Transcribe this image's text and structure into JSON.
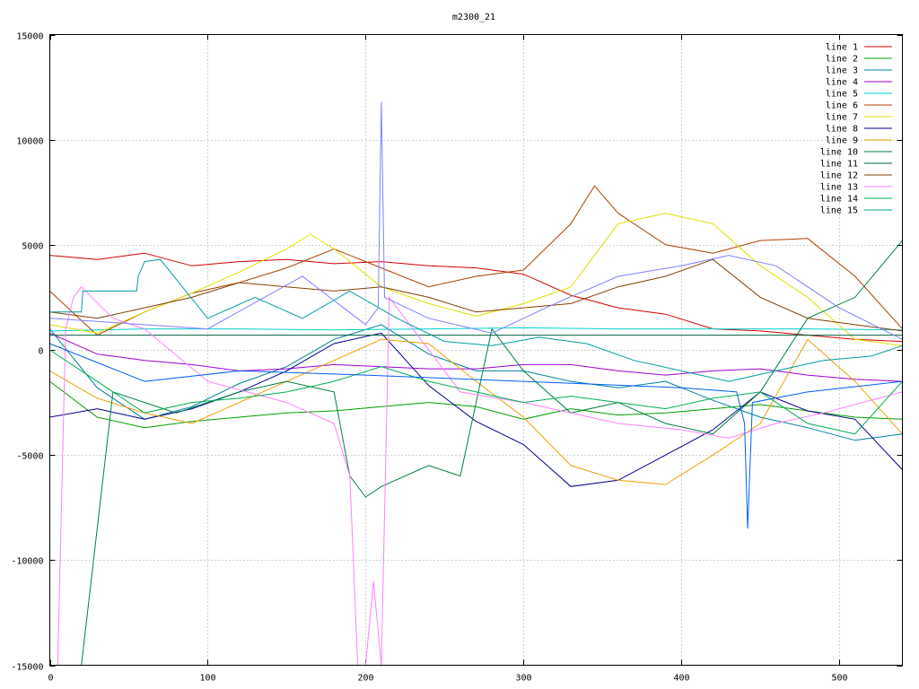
{
  "chart_data": {
    "type": "line",
    "title": "m2300_21",
    "xlabel": "",
    "ylabel": "",
    "xlim": [
      0,
      540
    ],
    "ylim": [
      -15000,
      15000
    ],
    "x_ticks": [
      0,
      100,
      200,
      300,
      400,
      500
    ],
    "y_ticks": [
      -15000,
      -10000,
      -5000,
      0,
      5000,
      10000,
      15000
    ],
    "grid": true,
    "legend_position": "top-right",
    "series": [
      {
        "name": "line 1",
        "color": "#d40000",
        "x": [
          0,
          30,
          60,
          90,
          120,
          150,
          180,
          210,
          240,
          270,
          300,
          330,
          360,
          390,
          420,
          450,
          480,
          510,
          540
        ],
        "values": [
          4500,
          4300,
          4600,
          4000,
          4200,
          4300,
          4100,
          4200,
          4000,
          3900,
          3600,
          2600,
          2000,
          1700,
          1000,
          900,
          700,
          500,
          400
        ]
      },
      {
        "name": "line 2",
        "color": "#00a000",
        "x": [
          0,
          30,
          60,
          90,
          120,
          150,
          180,
          210,
          240,
          270,
          300,
          330,
          360,
          390,
          420,
          450,
          480,
          510,
          540
        ],
        "values": [
          -1500,
          -3200,
          -3700,
          -3400,
          -3200,
          -3000,
          -2900,
          -2700,
          -2500,
          -2700,
          -3300,
          -2800,
          -3100,
          -3000,
          -2800,
          -2600,
          -2900,
          -3200,
          -3300
        ]
      },
      {
        "name": "line 3",
        "color": "#0080a0",
        "x": [
          0,
          30,
          60,
          90,
          120,
          150,
          180,
          210,
          240,
          270,
          300,
          330,
          360,
          390,
          420,
          450,
          480,
          510,
          540
        ],
        "values": [
          1000,
          -1800,
          -3300,
          -2700,
          -1600,
          -800,
          500,
          1200,
          -200,
          -1000,
          -1000,
          -1500,
          -1800,
          -1500,
          -2400,
          -3200,
          -3700,
          -4300,
          -4000
        ]
      },
      {
        "name": "line 4",
        "color": "#a000d0",
        "x": [
          0,
          30,
          60,
          90,
          120,
          150,
          180,
          210,
          240,
          270,
          300,
          330,
          360,
          390,
          420,
          450,
          480,
          510,
          540
        ],
        "values": [
          800,
          -200,
          -500,
          -700,
          -1000,
          -900,
          -700,
          -800,
          -900,
          -900,
          -700,
          -700,
          -1000,
          -1200,
          -1000,
          -900,
          -1200,
          -1400,
          -1500
        ]
      },
      {
        "name": "line 5",
        "color": "#00d0d0",
        "x": [
          0,
          60,
          120,
          180,
          240,
          300,
          360,
          420,
          480,
          540
        ],
        "values": [
          900,
          1000,
          1000,
          950,
          1000,
          1050,
          1000,
          1000,
          1000,
          950
        ]
      },
      {
        "name": "line 6",
        "color": "#b04000",
        "x": [
          0,
          30,
          60,
          90,
          120,
          150,
          180,
          210,
          240,
          270,
          300,
          330,
          345,
          360,
          390,
          420,
          450,
          480,
          510,
          540
        ],
        "values": [
          2800,
          700,
          1800,
          2700,
          3200,
          3900,
          4800,
          3900,
          3000,
          3500,
          3800,
          6000,
          7800,
          6500,
          5000,
          4600,
          5200,
          5300,
          3500,
          1000
        ]
      },
      {
        "name": "line 7",
        "color": "#e0e000",
        "x": [
          0,
          30,
          60,
          90,
          120,
          150,
          165,
          180,
          210,
          240,
          270,
          300,
          330,
          360,
          390,
          420,
          450,
          480,
          510,
          540
        ],
        "values": [
          1200,
          800,
          1800,
          2700,
          3700,
          4800,
          5500,
          4800,
          3000,
          2200,
          1600,
          2200,
          3000,
          6000,
          6500,
          6000,
          4000,
          2500,
          500,
          200
        ]
      },
      {
        "name": "line 8",
        "color": "#000090",
        "x": [
          0,
          30,
          60,
          90,
          120,
          150,
          180,
          210,
          240,
          270,
          300,
          330,
          360,
          390,
          420,
          450,
          480,
          510,
          540
        ],
        "values": [
          -3200,
          -2800,
          -3300,
          -2800,
          -2000,
          -1000,
          300,
          800,
          -1700,
          -3400,
          -4500,
          -6500,
          -6200,
          -5000,
          -3800,
          -2000,
          -2900,
          -3300,
          -5700
        ]
      },
      {
        "name": "line 9",
        "color": "#f0a000",
        "x": [
          0,
          30,
          60,
          90,
          120,
          150,
          180,
          210,
          240,
          270,
          300,
          330,
          360,
          390,
          420,
          450,
          480,
          510,
          540
        ],
        "values": [
          -1000,
          -2300,
          -3000,
          -3500,
          -2500,
          -1500,
          -500,
          500,
          300,
          -1500,
          -3200,
          -5500,
          -6200,
          -6400,
          -5000,
          -3500,
          500,
          -1500,
          -4000
        ]
      },
      {
        "name": "line 10",
        "color": "#008040",
        "x": [
          0,
          20,
          40,
          60,
          80,
          100,
          120,
          150,
          180,
          190,
          200,
          210,
          240,
          260,
          280,
          300,
          330,
          360,
          390,
          420,
          450,
          480,
          510,
          540
        ],
        "values": [
          -15000,
          -15000,
          -2000,
          -2500,
          -3000,
          -2500,
          -2000,
          -1500,
          -2000,
          -6000,
          -7000,
          -6500,
          -5500,
          -6000,
          1000,
          -1000,
          -3000,
          -2500,
          -3500,
          -4000,
          -2000,
          1500,
          2500,
          5200
        ]
      },
      {
        "name": "line 11",
        "color": "#006040",
        "x": [
          0,
          30,
          60,
          90,
          120,
          150,
          180,
          210,
          240,
          270,
          300,
          330,
          360,
          390,
          420,
          450,
          480,
          510,
          540
        ],
        "values": [
          700,
          700,
          700,
          700,
          700,
          700,
          700,
          700,
          700,
          700,
          700,
          700,
          700,
          700,
          700,
          700,
          700,
          700,
          700
        ]
      },
      {
        "name": "line 12",
        "color": "#804000",
        "x": [
          0,
          30,
          60,
          90,
          120,
          150,
          180,
          210,
          240,
          270,
          300,
          330,
          360,
          390,
          420,
          450,
          480,
          510,
          540
        ],
        "values": [
          1800,
          1500,
          2000,
          2500,
          3200,
          3000,
          2800,
          3000,
          2500,
          1800,
          2000,
          2200,
          3000,
          3500,
          4300,
          2500,
          1500,
          1200,
          900
        ]
      },
      {
        "name": "line 13",
        "color": "#ff80ff",
        "x": [
          0,
          5,
          10,
          15,
          20,
          40,
          60,
          100,
          150,
          180,
          190,
          195,
          200,
          205,
          210,
          215,
          230,
          260,
          300,
          330,
          360,
          400,
          430,
          460,
          490,
          540
        ],
        "values": [
          -15000,
          -15000,
          1000,
          2500,
          3000,
          1500,
          1000,
          -1500,
          -2500,
          -3500,
          -6000,
          -15000,
          -15000,
          -11000,
          -15000,
          2500,
          1000,
          -2000,
          -2500,
          -3000,
          -3500,
          -3800,
          -4200,
          -3500,
          -3000,
          -2000
        ]
      },
      {
        "name": "line 14",
        "color": "#00b050",
        "x": [
          0,
          30,
          60,
          90,
          120,
          150,
          180,
          210,
          240,
          270,
          300,
          330,
          360,
          390,
          420,
          450,
          480,
          510,
          540
        ],
        "values": [
          0,
          -1500,
          -3000,
          -2500,
          -2300,
          -2000,
          -1500,
          -800,
          -1500,
          -2000,
          -2500,
          -2200,
          -2500,
          -2800,
          -2300,
          -2000,
          -3500,
          -4000,
          -1500
        ]
      },
      {
        "name": "line 15",
        "color": "#00a0a0",
        "x": [
          0,
          20,
          21,
          40,
          55,
          56,
          60,
          70,
          100,
          130,
          160,
          190,
          220,
          250,
          280,
          310,
          340,
          370,
          400,
          430,
          460,
          490,
          520,
          540
        ],
        "values": [
          1800,
          1800,
          2800,
          2800,
          2800,
          3500,
          4200,
          4300,
          1500,
          2500,
          1500,
          2800,
          1500,
          400,
          200,
          600,
          300,
          -500,
          -1000,
          -1500,
          -1000,
          -500,
          -300,
          200
        ]
      },
      {
        "name": "",
        "color": "#8080ff",
        "x": [
          0,
          100,
          160,
          200,
          208,
          210,
          212,
          240,
          280,
          320,
          360,
          400,
          430,
          460,
          500,
          540
        ],
        "values": [
          1500,
          1000,
          3500,
          1200,
          2000,
          11800,
          2500,
          1500,
          800,
          2200,
          3500,
          4000,
          4500,
          4000,
          2000,
          500
        ]
      },
      {
        "name": "",
        "color": "#0060f0",
        "x": [
          0,
          60,
          120,
          200,
          300,
          400,
          435,
          440,
          442,
          445,
          480,
          540
        ],
        "values": [
          300,
          -1500,
          -1000,
          -1200,
          -1500,
          -1800,
          -2000,
          -3500,
          -8500,
          -2500,
          -2000,
          -1500
        ]
      }
    ]
  }
}
